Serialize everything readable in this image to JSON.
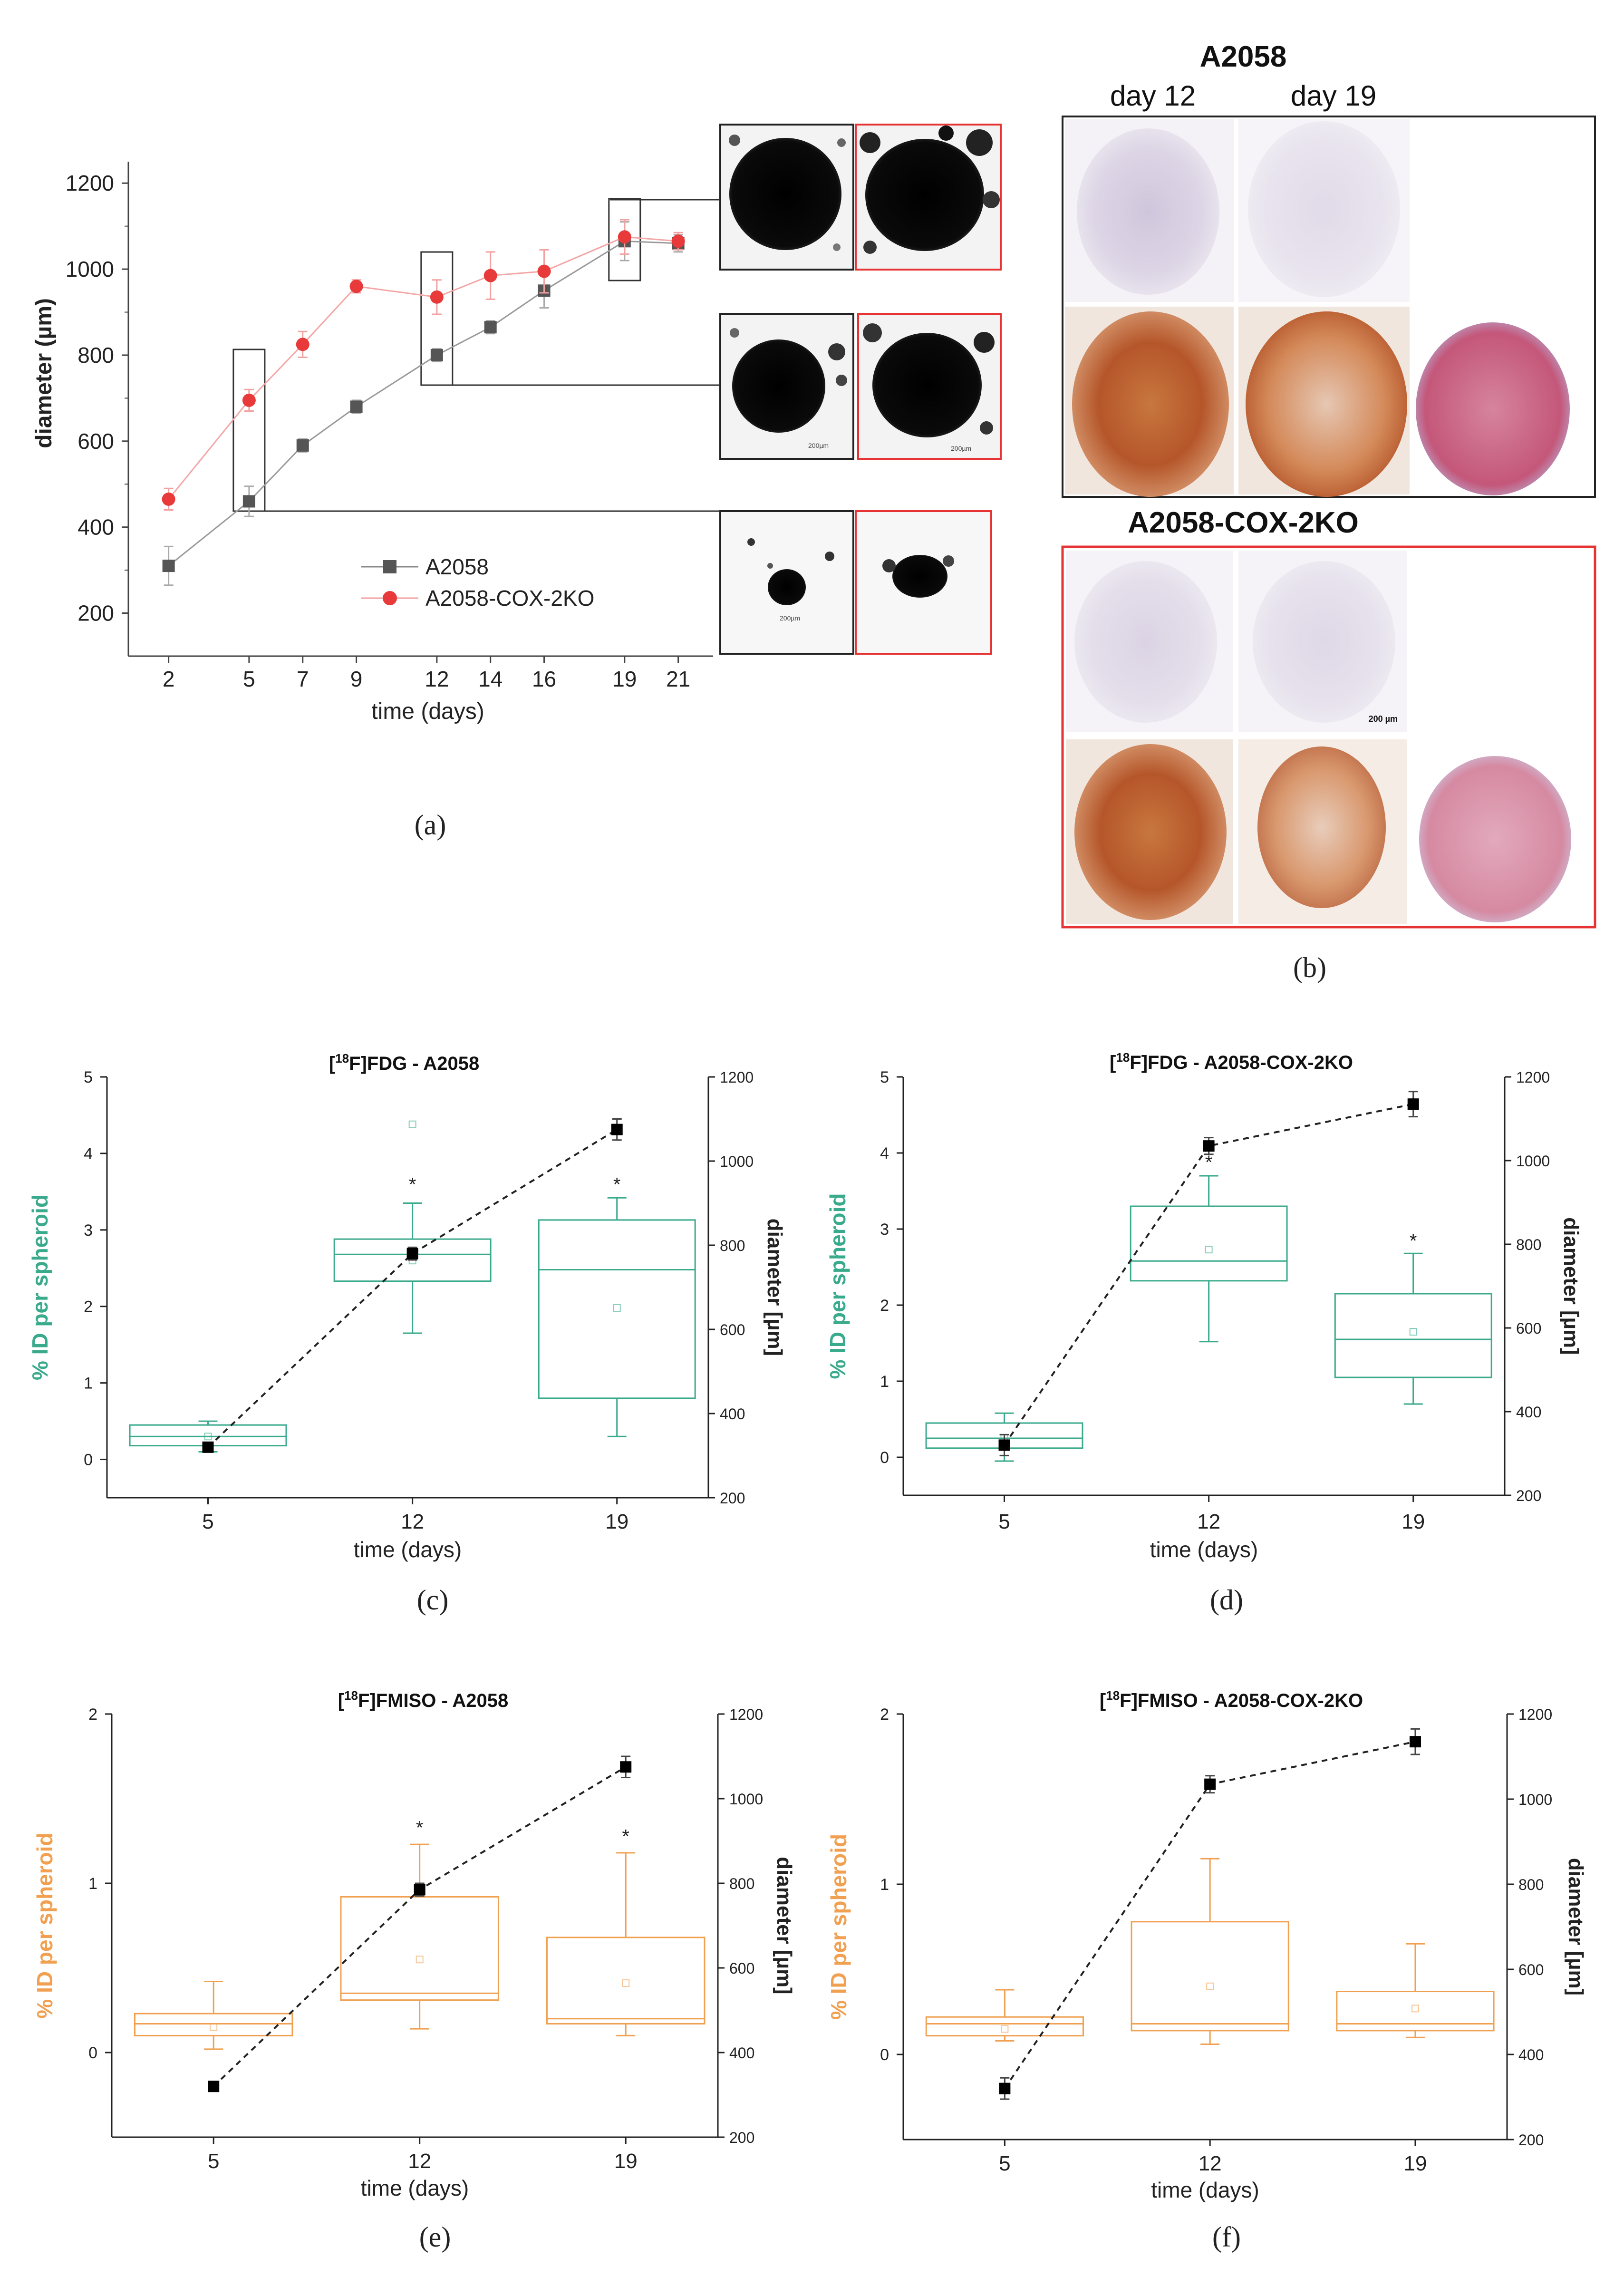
{
  "panel_labels": {
    "a": "(a)",
    "b": "(b)",
    "c": "(c)",
    "d": "(d)",
    "e": "(e)",
    "f": "(f)"
  },
  "micro": {
    "title_a": "A2058",
    "day12": "day 12",
    "day19": "day 19",
    "title_b": "A2058-COX-2KO",
    "scale_label": "200 µm",
    "colors": {
      "tissue_pale": "#d9d3e3",
      "tissue_brown": "#b5562a",
      "tissue_pink": "#c4577a",
      "box_black": "#222222",
      "box_red": "#e63333"
    }
  },
  "chart_data": [
    {
      "id": "a",
      "type": "line",
      "title": "",
      "xlabel": "time (days)",
      "ylabel": "diameter (µm)",
      "x": [
        2,
        5,
        7,
        9,
        12,
        14,
        16,
        19,
        21
      ],
      "ylim": [
        100,
        1250
      ],
      "yticks": [
        200,
        400,
        600,
        800,
        1000,
        1200
      ],
      "legend_position": "lower-center",
      "series": [
        {
          "name": "A2058",
          "color": "#555555",
          "marker": "square",
          "values": [
            310,
            460,
            590,
            680,
            800,
            865,
            950,
            1065,
            1060
          ],
          "errors": [
            45,
            35,
            15,
            15,
            15,
            15,
            40,
            45,
            20
          ]
        },
        {
          "name": "A2058-COX-2KO",
          "color": "#e83a3a",
          "marker": "circle",
          "values": [
            465,
            695,
            825,
            960,
            935,
            985,
            995,
            1075,
            1065
          ],
          "errors": [
            25,
            25,
            30,
            15,
            40,
            55,
            50,
            40,
            20
          ]
        }
      ],
      "highlight_boxes_days": [
        5,
        12,
        19
      ],
      "inset_scale_labels": [
        "200µm",
        "200µm",
        "200µm"
      ]
    },
    {
      "id": "c",
      "type": "box",
      "title_pre": "[",
      "title_sup": "18",
      "title_post": "F]FDG - A2058",
      "xlabel": "time (days)",
      "ylabel": "% ID per spheroid",
      "y2label": "diameter [µm]",
      "color": "#3aaa8c",
      "categories": [
        "5",
        "12",
        "19"
      ],
      "ylim": [
        -0.5,
        5
      ],
      "yticks": [
        0,
        1,
        2,
        3,
        4,
        5
      ],
      "y2lim": [
        200,
        1200
      ],
      "y2ticks": [
        200,
        400,
        600,
        800,
        1000,
        1200
      ],
      "boxes": [
        {
          "whisker_low": 0.1,
          "q1": 0.18,
          "median": 0.3,
          "q3": 0.45,
          "whisker_high": 0.5,
          "mean": 0.3,
          "outlier": null
        },
        {
          "whisker_low": 1.65,
          "q1": 2.33,
          "median": 2.68,
          "q3": 2.88,
          "whisker_high": 3.35,
          "mean": 2.6,
          "outlier": 4.38
        },
        {
          "whisker_low": 0.3,
          "q1": 0.8,
          "median": 2.48,
          "q3": 3.13,
          "whisker_high": 3.42,
          "mean": 1.98,
          "outlier": null
        }
      ],
      "stars": [
        {
          "category": "12",
          "y": 3.6,
          "label": "*"
        },
        {
          "category": "19",
          "y": 3.6,
          "label": "*"
        }
      ],
      "diameter": {
        "values": [
          320,
          780,
          1075
        ],
        "errors": [
          8,
          15,
          25
        ]
      }
    },
    {
      "id": "d",
      "type": "box",
      "title_pre": "[",
      "title_sup": "18",
      "title_post": "F]FDG - A2058-COX-2KO",
      "xlabel": "time (days)",
      "ylabel": "% ID per spheroid",
      "y2label": "diameter [µm]",
      "color": "#3aaa8c",
      "categories": [
        "5",
        "12",
        "19"
      ],
      "ylim": [
        -0.5,
        5
      ],
      "yticks": [
        0,
        1,
        2,
        3,
        4,
        5
      ],
      "y2lim": [
        200,
        1200
      ],
      "y2ticks": [
        200,
        400,
        600,
        800,
        1000,
        1200
      ],
      "boxes": [
        {
          "whisker_low": -0.05,
          "q1": 0.12,
          "median": 0.25,
          "q3": 0.45,
          "whisker_high": 0.58,
          "mean": 0.25,
          "outlier": null
        },
        {
          "whisker_low": 1.52,
          "q1": 2.32,
          "median": 2.58,
          "q3": 3.3,
          "whisker_high": 3.7,
          "mean": 2.73,
          "outlier": null
        },
        {
          "whisker_low": 0.7,
          "q1": 1.05,
          "median": 1.55,
          "q3": 2.15,
          "whisker_high": 2.68,
          "mean": 1.65,
          "outlier": null
        }
      ],
      "stars": [
        {
          "category": "12",
          "y": 3.88,
          "label": "*"
        },
        {
          "category": "19",
          "y": 2.85,
          "label": "*"
        }
      ],
      "diameter": {
        "values": [
          320,
          1035,
          1135
        ],
        "errors": [
          25,
          20,
          30
        ]
      }
    },
    {
      "id": "e",
      "type": "box",
      "title_pre": "[",
      "title_sup": "18",
      "title_post": "F]FMISO - A2058",
      "xlabel": "time (days)",
      "ylabel": "% ID per spheroid",
      "y2label": "diameter [µm]",
      "color": "#f0a050",
      "categories": [
        "5",
        "12",
        "19"
      ],
      "ylim": [
        -0.5,
        2
      ],
      "yticks": [
        0,
        1,
        2
      ],
      "y2lim": [
        200,
        1200
      ],
      "y2ticks": [
        200,
        400,
        600,
        800,
        1000,
        1200
      ],
      "boxes": [
        {
          "whisker_low": 0.02,
          "q1": 0.1,
          "median": 0.17,
          "q3": 0.23,
          "whisker_high": 0.42,
          "mean": 0.15,
          "outlier": null
        },
        {
          "whisker_low": 0.14,
          "q1": 0.31,
          "median": 0.35,
          "q3": 0.92,
          "whisker_high": 1.23,
          "mean": 0.55,
          "outlier": null
        },
        {
          "whisker_low": 0.1,
          "q1": 0.17,
          "median": 0.2,
          "q3": 0.68,
          "whisker_high": 1.18,
          "mean": 0.41,
          "outlier": null
        }
      ],
      "stars": [
        {
          "category": "12",
          "y": 1.33,
          "label": "*"
        },
        {
          "category": "19",
          "y": 1.28,
          "label": "*"
        }
      ],
      "diameter": {
        "values": [
          320,
          785,
          1075
        ],
        "errors": [
          8,
          15,
          25
        ]
      }
    },
    {
      "id": "f",
      "type": "box",
      "title_pre": "[",
      "title_sup": "18",
      "title_post": "F]FMISO - A2058-COX-2KO",
      "xlabel": "time (days)",
      "ylabel": "% ID per spheroid",
      "y2label": "diameter [µm]",
      "color": "#f0a050",
      "categories": [
        "5",
        "12",
        "19"
      ],
      "ylim": [
        -0.5,
        2
      ],
      "yticks": [
        0,
        1,
        2
      ],
      "y2lim": [
        200,
        1200
      ],
      "y2ticks": [
        200,
        400,
        600,
        800,
        1000,
        1200
      ],
      "boxes": [
        {
          "whisker_low": 0.08,
          "q1": 0.11,
          "median": 0.18,
          "q3": 0.22,
          "whisker_high": 0.38,
          "mean": 0.15,
          "outlier": null
        },
        {
          "whisker_low": 0.06,
          "q1": 0.14,
          "median": 0.18,
          "q3": 0.78,
          "whisker_high": 1.15,
          "mean": 0.4,
          "outlier": null
        },
        {
          "whisker_low": 0.1,
          "q1": 0.14,
          "median": 0.18,
          "q3": 0.37,
          "whisker_high": 0.65,
          "mean": 0.27,
          "outlier": null
        }
      ],
      "stars": [],
      "diameter": {
        "values": [
          320,
          1035,
          1135
        ],
        "errors": [
          25,
          20,
          30
        ]
      }
    }
  ]
}
